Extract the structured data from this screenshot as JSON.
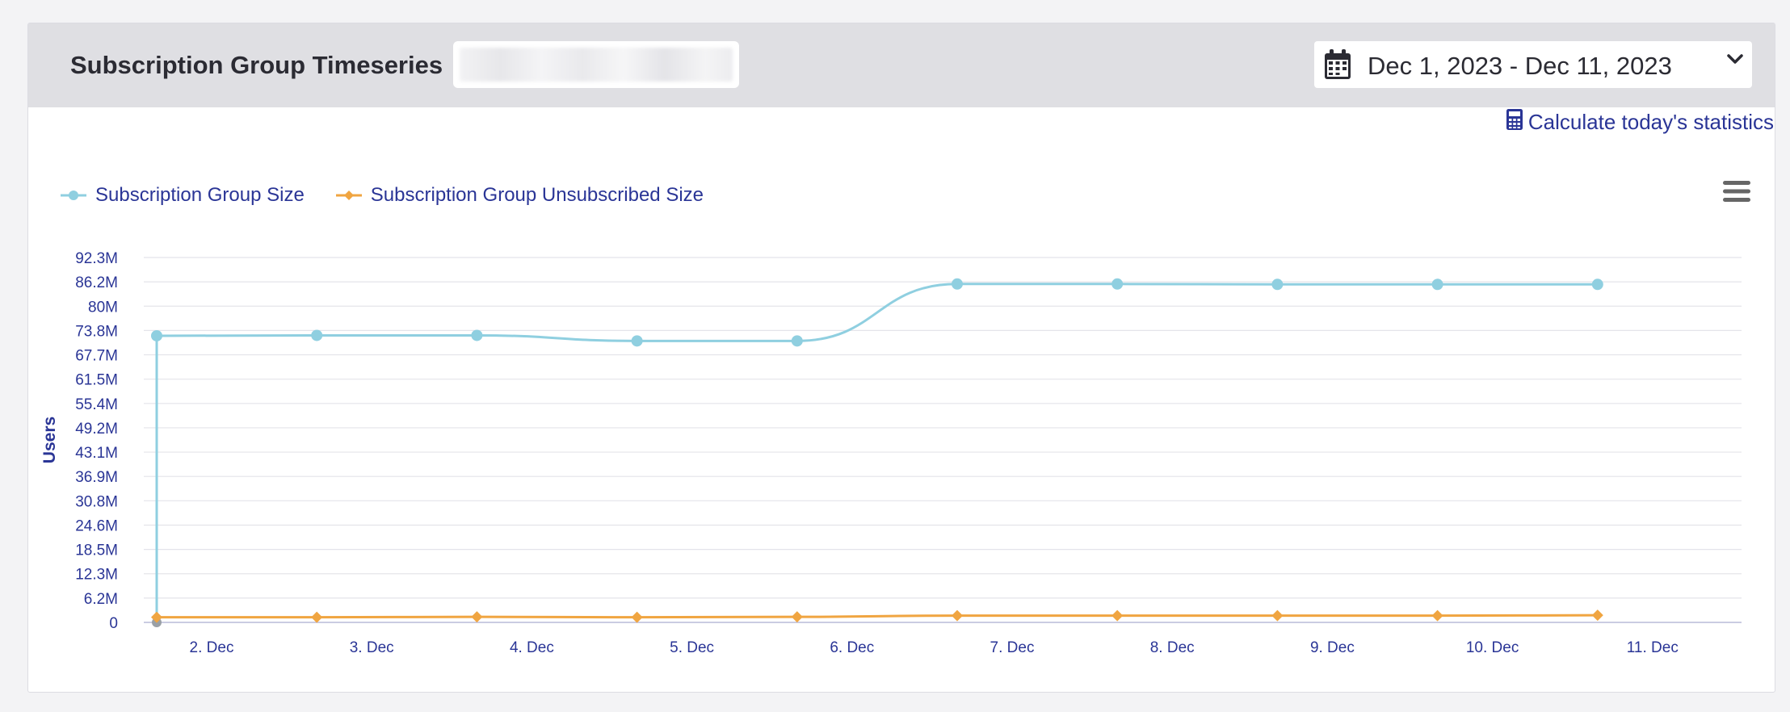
{
  "header": {
    "title": "Subscription Group Timeseries",
    "date_range": "Dec 1, 2023 - Dec 11, 2023"
  },
  "actions": {
    "calculate_label": "Calculate today's statistics"
  },
  "icons": {
    "calendar": "calendar-icon",
    "dropdown": "chevron-down-icon",
    "calculator": "calculator-icon",
    "menu": "hamburger-menu-icon"
  },
  "colors": {
    "size_series": "#8fcfe0",
    "unsubscribed_series": "#f0a541",
    "axis_text": "#2a3596"
  },
  "chart_data": {
    "type": "line",
    "ylabel": "Users",
    "xlabel": "",
    "y_ticks": [
      "0",
      "6.2M",
      "12.3M",
      "18.5M",
      "24.6M",
      "30.8M",
      "36.9M",
      "43.1M",
      "49.2M",
      "55.4M",
      "61.5M",
      "67.7M",
      "73.8M",
      "80M",
      "86.2M",
      "92.3M"
    ],
    "ylim": [
      0,
      92.3
    ],
    "x_tick_labels": [
      "2. Dec",
      "3. Dec",
      "4. Dec",
      "5. Dec",
      "6. Dec",
      "7. Dec",
      "8. Dec",
      "9. Dec",
      "10. Dec",
      "11. Dec"
    ],
    "x": [
      "Dec 1",
      "Dec 2",
      "Dec 3",
      "Dec 4",
      "Dec 5",
      "Dec 6",
      "Dec 7",
      "Dec 8",
      "Dec 9",
      "Dec 10"
    ],
    "series": [
      {
        "name": "Subscription Group Size",
        "marker": "circle",
        "values": [
          72.5,
          72.6,
          72.6,
          71.2,
          71.2,
          85.6,
          85.6,
          85.5,
          85.5,
          85.5
        ]
      },
      {
        "name": "Subscription Group Unsubscribed Size",
        "marker": "diamond",
        "values": [
          1.3,
          1.3,
          1.4,
          1.3,
          1.4,
          1.7,
          1.7,
          1.7,
          1.7,
          1.8
        ]
      }
    ],
    "legend_position": "top-left",
    "grid": true
  }
}
